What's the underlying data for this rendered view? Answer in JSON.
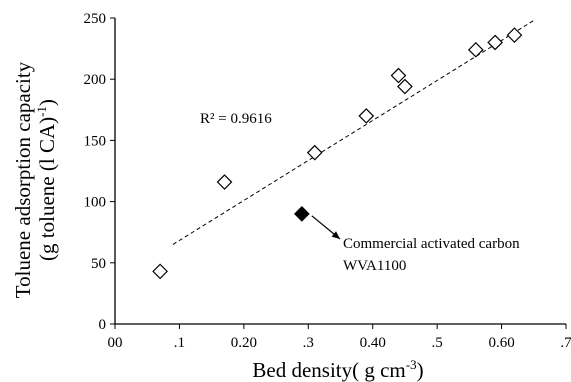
{
  "chart_data": {
    "type": "scatter",
    "xlabel_main": "Bed density( g cm",
    "xlabel_sup": "-3",
    "xlabel_end": ")",
    "ylabel_line1": "Toluene adsorption capacity",
    "ylabel_line2_main": "(g toluene (l CA)",
    "ylabel_line2_sup": "-1",
    "ylabel_line2_end": ")",
    "xlim": [
      0,
      0.7
    ],
    "ylim": [
      0,
      250
    ],
    "x_ticks": [
      0,
      0.1,
      0.2,
      0.3,
      0.4,
      0.5,
      0.6,
      0.7
    ],
    "x_tick_labels": [
      "00",
      ".1",
      "0.20",
      ".3",
      "0.40",
      ".5",
      "0.60",
      ".7"
    ],
    "y_ticks": [
      0,
      50,
      100,
      150,
      200,
      250
    ],
    "y_tick_labels": [
      "0",
      "50",
      "100",
      "150",
      "200",
      "250"
    ],
    "grid": false,
    "series": [
      {
        "marker": "open-diamond",
        "points": [
          {
            "x": 0.07,
            "y": 43
          },
          {
            "x": 0.17,
            "y": 116
          },
          {
            "x": 0.31,
            "y": 140
          },
          {
            "x": 0.39,
            "y": 170
          },
          {
            "x": 0.44,
            "y": 203
          },
          {
            "x": 0.45,
            "y": 194
          },
          {
            "x": 0.56,
            "y": 224
          },
          {
            "x": 0.59,
            "y": 230
          },
          {
            "x": 0.62,
            "y": 236
          }
        ]
      },
      {
        "marker": "filled-diamond",
        "points": [
          {
            "x": 0.29,
            "y": 90
          }
        ]
      }
    ],
    "trendline": {
      "style": "dashed",
      "x": [
        0.09,
        0.65
      ],
      "y": [
        65,
        248
      ]
    },
    "r_squared_label": "R² = 0.9616",
    "annotation": {
      "line1": "Commercial activated carbon",
      "line2": "WVA1100",
      "points_to": {
        "x": 0.29,
        "y": 90
      }
    }
  }
}
